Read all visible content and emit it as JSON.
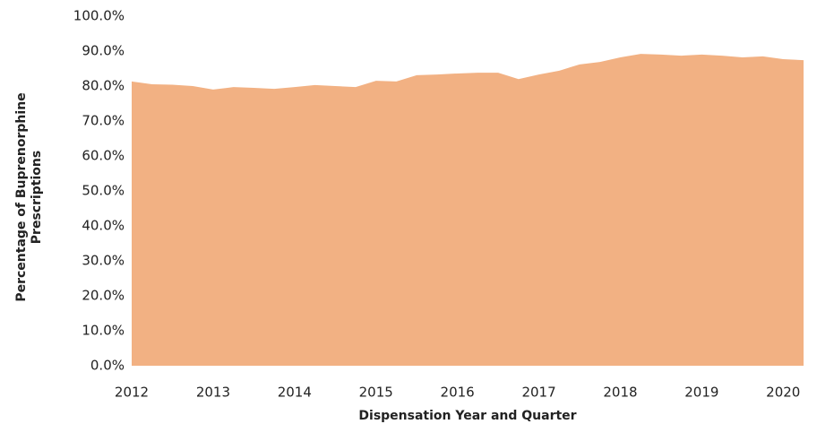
{
  "chart_data": {
    "type": "area",
    "xlabel": "Dispensation Year and Quarter",
    "ylabel": [
      "Percentage of Buprenorphine",
      "Prescriptions"
    ],
    "categories": [
      "2012",
      null,
      null,
      null,
      "2013",
      null,
      null,
      null,
      "2014",
      null,
      null,
      null,
      "2015",
      null,
      null,
      null,
      "2016",
      null,
      null,
      null,
      "2017",
      null,
      null,
      null,
      "2018",
      null,
      null,
      null,
      "2019",
      null,
      null,
      null,
      "2020",
      null
    ],
    "values": [
      81.3,
      80.5,
      80.4,
      80.0,
      79.0,
      79.7,
      79.5,
      79.2,
      79.7,
      80.3,
      80.0,
      79.7,
      81.5,
      81.3,
      83.1,
      83.3,
      83.6,
      83.8,
      83.8,
      82.0,
      83.3,
      84.4,
      86.2,
      86.9,
      88.2,
      89.2,
      89.0,
      88.7,
      89.0,
      88.7,
      88.2,
      88.5,
      87.7,
      87.4
    ],
    "color": "#f2b183",
    "ylim": [
      0,
      100
    ],
    "yticks": [
      {
        "value": 0,
        "label": "0.0%"
      },
      {
        "value": 10,
        "label": "10.0%"
      },
      {
        "value": 20,
        "label": "20.0%"
      },
      {
        "value": 30,
        "label": "30.0%"
      },
      {
        "value": 40,
        "label": "40.0%"
      },
      {
        "value": 50,
        "label": "50.0%"
      },
      {
        "value": 60,
        "label": "60.0%"
      },
      {
        "value": 70,
        "label": "70.0%"
      },
      {
        "value": 80,
        "label": "80.0%"
      },
      {
        "value": 90,
        "label": "90.0%"
      },
      {
        "value": 100,
        "label": "100.0%"
      }
    ],
    "grid": false
  }
}
